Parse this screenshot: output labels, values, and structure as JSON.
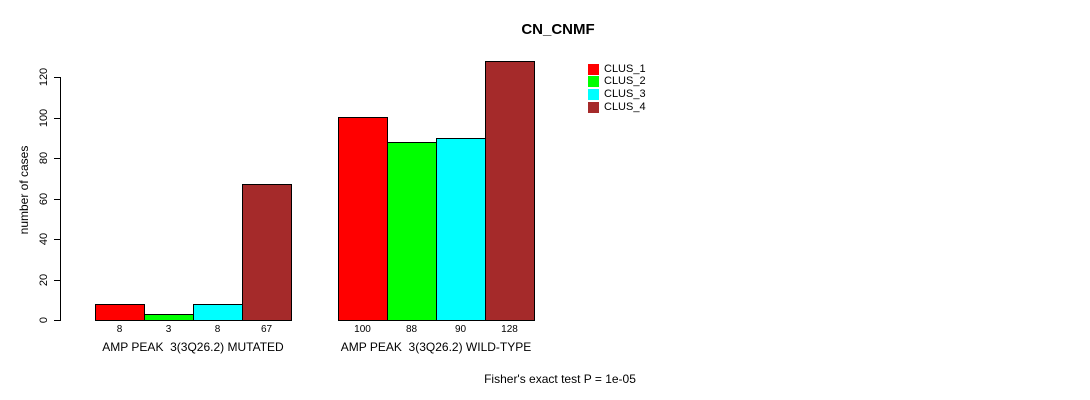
{
  "chart_data": {
    "type": "bar",
    "title": "CN_CNMF",
    "ylabel": "number of cases",
    "xlabel": "",
    "ylim": [
      0,
      128
    ],
    "yticks": [
      0,
      20,
      40,
      60,
      80,
      100,
      120
    ],
    "grid": false,
    "legend_position": "top-right",
    "categories": [
      "AMP PEAK  3(3Q26.2) MUTATED",
      "AMP PEAK  3(3Q26.2) WILD-TYPE"
    ],
    "series": [
      {
        "name": "CLUS_1",
        "color": "#ff0000",
        "values": [
          8,
          100
        ]
      },
      {
        "name": "CLUS_2",
        "color": "#00ff00",
        "values": [
          3,
          88
        ]
      },
      {
        "name": "CLUS_3",
        "color": "#00ffff",
        "values": [
          8,
          90
        ]
      },
      {
        "name": "CLUS_4",
        "color": "#a52a2a",
        "values": [
          67,
          128
        ]
      }
    ],
    "bar_value_labels": [
      [
        8,
        3,
        8,
        67
      ],
      [
        100,
        88,
        90,
        128
      ]
    ],
    "annotation": "Fisher's exact test P = 1e-05"
  },
  "colors": {
    "bar_border": "#000000",
    "axis": "#000000",
    "background": "#ffffff"
  }
}
